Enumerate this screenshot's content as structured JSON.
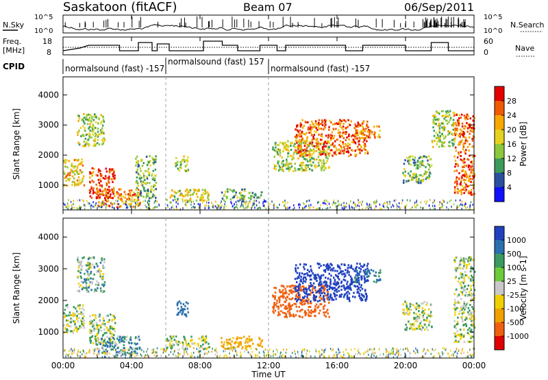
{
  "header": {
    "station": "Saskatoon (fitACF)",
    "beam": "Beam 07",
    "date": "06/Sep/2011"
  },
  "noise_panel": {
    "left_label": "N.Sky",
    "right_label": "N.Search",
    "y_top": "10^5",
    "y_bottom": "10^0"
  },
  "freq_panel": {
    "left_label_1": "Freq.",
    "left_label_2": "[MHz]",
    "right_label": "Nave",
    "left_ticks": [
      "18",
      "8"
    ],
    "right_ticks": [
      "60",
      "0"
    ]
  },
  "cpid_panel": {
    "label": "CPID",
    "segments": [
      "normalsound (fast) -157",
      "normalsound (fast) 157",
      "normalsound (fast) -157"
    ]
  },
  "power_panel": {
    "ylabel": "Slant Range [km]",
    "colorbar_label": "Power [dB]",
    "colorbar_ticks": [
      "28",
      "24",
      "20",
      "16",
      "12",
      "8",
      "4"
    ],
    "colorbar_colors": [
      "#e50000",
      "#f05a00",
      "#f7a800",
      "#e6d21e",
      "#8cc83c",
      "#3c9a5a",
      "#2a50a0",
      "#1010ff"
    ]
  },
  "velocity_panel": {
    "ylabel": "Slant Range [km]",
    "colorbar_label": "Velocity [m s-1]",
    "colorbar_ticks": [
      "1000",
      "500",
      "100",
      "25",
      "-25",
      "-100",
      "-500",
      "-1000"
    ],
    "colorbar_colors": [
      "#2040c0",
      "#2a70b0",
      "#3a9a60",
      "#6ccb3a",
      "#c8c8c8",
      "#f0d000",
      "#f0a000",
      "#f06010",
      "#e00000"
    ]
  },
  "xaxis": {
    "label": "Time UT",
    "ticks": [
      "00:00",
      "04:00",
      "08:00",
      "12:00",
      "16:00",
      "20:00",
      "00:00"
    ]
  },
  "chart_data": [
    {
      "type": "heatmap",
      "title": "Power",
      "ylabel": "Slant Range [km]",
      "xlabel": "Time UT",
      "x_range_hours": [
        0,
        24
      ],
      "ylim": [
        180,
        4600
      ],
      "yticks": [
        1000,
        2000,
        3000,
        4000
      ],
      "colorbar": {
        "label": "Power [dB]",
        "ticks": [
          28,
          24,
          20,
          16,
          12,
          8,
          4
        ],
        "range": [
          0,
          30
        ]
      },
      "regions": [
        {
          "t": [
            0.0,
            1.2
          ],
          "r": [
            1000,
            1900
          ],
          "level": 18
        },
        {
          "t": [
            0.8,
            2.4
          ],
          "r": [
            2300,
            3400
          ],
          "level": 14
        },
        {
          "t": [
            1.5,
            3.0
          ],
          "r": [
            600,
            1600
          ],
          "level": 26
        },
        {
          "t": [
            2.0,
            4.5
          ],
          "r": [
            300,
            900
          ],
          "level": 22
        },
        {
          "t": [
            4.2,
            5.4
          ],
          "r": [
            600,
            2000
          ],
          "level": 12
        },
        {
          "t": [
            6.0,
            8.5
          ],
          "r": [
            500,
            900
          ],
          "level": 16
        },
        {
          "t": [
            6.5,
            7.3
          ],
          "r": [
            1500,
            2000
          ],
          "level": 14
        },
        {
          "t": [
            9.2,
            10.6
          ],
          "r": [
            500,
            900
          ],
          "level": 10
        },
        {
          "t": [
            10.8,
            11.6
          ],
          "r": [
            500,
            800
          ],
          "level": 10
        },
        {
          "t": [
            12.2,
            15.5
          ],
          "r": [
            1500,
            2500
          ],
          "level": 14
        },
        {
          "t": [
            13.5,
            17.8
          ],
          "r": [
            2000,
            3200
          ],
          "level": 24
        },
        {
          "t": [
            17.0,
            18.5
          ],
          "r": [
            2600,
            3000
          ],
          "level": 22
        },
        {
          "t": [
            19.8,
            21.5
          ],
          "r": [
            1100,
            2000
          ],
          "level": 12
        },
        {
          "t": [
            21.5,
            22.8
          ],
          "r": [
            2300,
            3500
          ],
          "level": 14
        },
        {
          "t": [
            22.8,
            24.0
          ],
          "r": [
            700,
            3400
          ],
          "level": 24
        }
      ]
    },
    {
      "type": "heatmap",
      "title": "Velocity",
      "ylabel": "Slant Range [km]",
      "xlabel": "Time UT",
      "x_range_hours": [
        0,
        24
      ],
      "ylim": [
        180,
        4600
      ],
      "yticks": [
        1000,
        2000,
        3000,
        4000
      ],
      "colorbar": {
        "label": "Velocity [m s-1]",
        "ticks": [
          1000,
          500,
          100,
          25,
          -25,
          -100,
          -500,
          -1000
        ]
      },
      "regions": [
        {
          "t": [
            0.0,
            1.2
          ],
          "r": [
            1000,
            1900
          ],
          "velocity": 0
        },
        {
          "t": [
            0.8,
            2.4
          ],
          "r": [
            2300,
            3400
          ],
          "velocity": 50
        },
        {
          "t": [
            1.5,
            3.0
          ],
          "r": [
            600,
            1600
          ],
          "velocity": 0
        },
        {
          "t": [
            2.0,
            4.5
          ],
          "r": [
            300,
            900
          ],
          "velocity": 80
        },
        {
          "t": [
            6.0,
            8.5
          ],
          "r": [
            500,
            900
          ],
          "velocity": 0
        },
        {
          "t": [
            6.5,
            7.3
          ],
          "r": [
            1500,
            2000
          ],
          "velocity": 300
        },
        {
          "t": [
            9.2,
            11.6
          ],
          "r": [
            500,
            900
          ],
          "velocity": -150
        },
        {
          "t": [
            12.2,
            15.5
          ],
          "r": [
            1500,
            2500
          ],
          "velocity": -900
        },
        {
          "t": [
            13.5,
            17.8
          ],
          "r": [
            2000,
            3200
          ],
          "velocity": 600
        },
        {
          "t": [
            17.0,
            18.5
          ],
          "r": [
            2600,
            3000
          ],
          "velocity": 150
        },
        {
          "t": [
            19.8,
            21.5
          ],
          "r": [
            1100,
            2000
          ],
          "velocity": 0
        },
        {
          "t": [
            22.8,
            24.0
          ],
          "r": [
            700,
            3400
          ],
          "velocity": 0
        }
      ]
    }
  ]
}
